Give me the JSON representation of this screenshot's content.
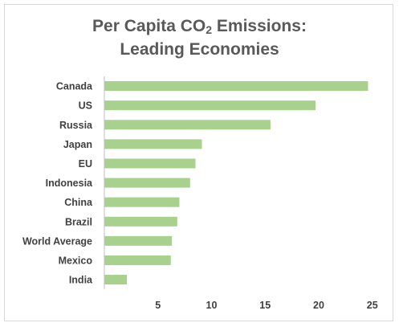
{
  "chart_data": {
    "type": "bar",
    "orientation": "horizontal",
    "title": {
      "line1_prefix": "Per Capita CO",
      "line1_subscript": "2",
      "line1_suffix": " Emissions:",
      "line2": "Leading Economies"
    },
    "categories": [
      "Canada",
      "US",
      "Russia",
      "Japan",
      "EU",
      "Indonesia",
      "China",
      "Brazil",
      "World Average",
      "Mexico",
      "India"
    ],
    "values": [
      24.6,
      19.7,
      15.5,
      9.1,
      8.5,
      8.0,
      7.0,
      6.8,
      6.3,
      6.2,
      2.1
    ],
    "xlabel": "",
    "ylabel": "",
    "xlim": [
      0,
      26
    ],
    "x_ticks": [
      5,
      10,
      15,
      20,
      25
    ],
    "grid": false,
    "legend": "none",
    "bar_color": "#a9d18e",
    "axis_color": "#bfbfbf",
    "text_color": "#404040",
    "title_color": "#595959"
  }
}
